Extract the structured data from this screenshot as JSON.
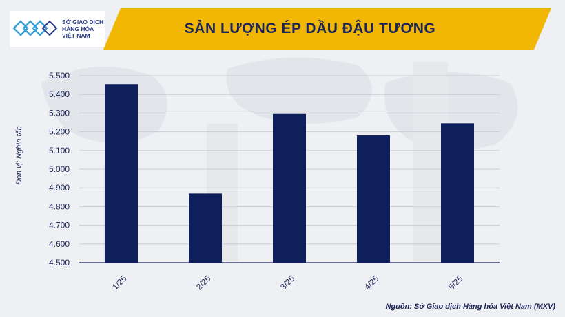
{
  "header": {
    "logo_lines": [
      "SỞ GIAO DỊCH",
      "HÀNG HÓA",
      "VIỆT NAM"
    ],
    "accent_color": "#f2b705",
    "title_color": "#1b2559"
  },
  "chart_data": {
    "type": "bar",
    "title": "SẢN LƯỢNG ÉP DẦU ĐẬU TƯƠNG",
    "ylabel": "Đơn vị: Nghìn tấn",
    "xlabel": "",
    "categories": [
      "1/25",
      "2/25",
      "3/25",
      "4/25",
      "5/25"
    ],
    "values": [
      5455,
      4870,
      5295,
      5180,
      5245
    ],
    "ylim": [
      4500,
      5500
    ],
    "yticks": [
      4500,
      4600,
      4700,
      4800,
      4900,
      5000,
      5100,
      5200,
      5300,
      5400,
      5500
    ],
    "ytick_labels": [
      "4.500",
      "4.600",
      "4.700",
      "4.800",
      "4.900",
      "5.000",
      "5.100",
      "5.200",
      "5.300",
      "5.400",
      "5.500"
    ],
    "bar_color": "#0f1f5c",
    "grid": true
  },
  "source": "Nguồn: Sở Giao dịch Hàng hóa Việt Nam (MXV)"
}
